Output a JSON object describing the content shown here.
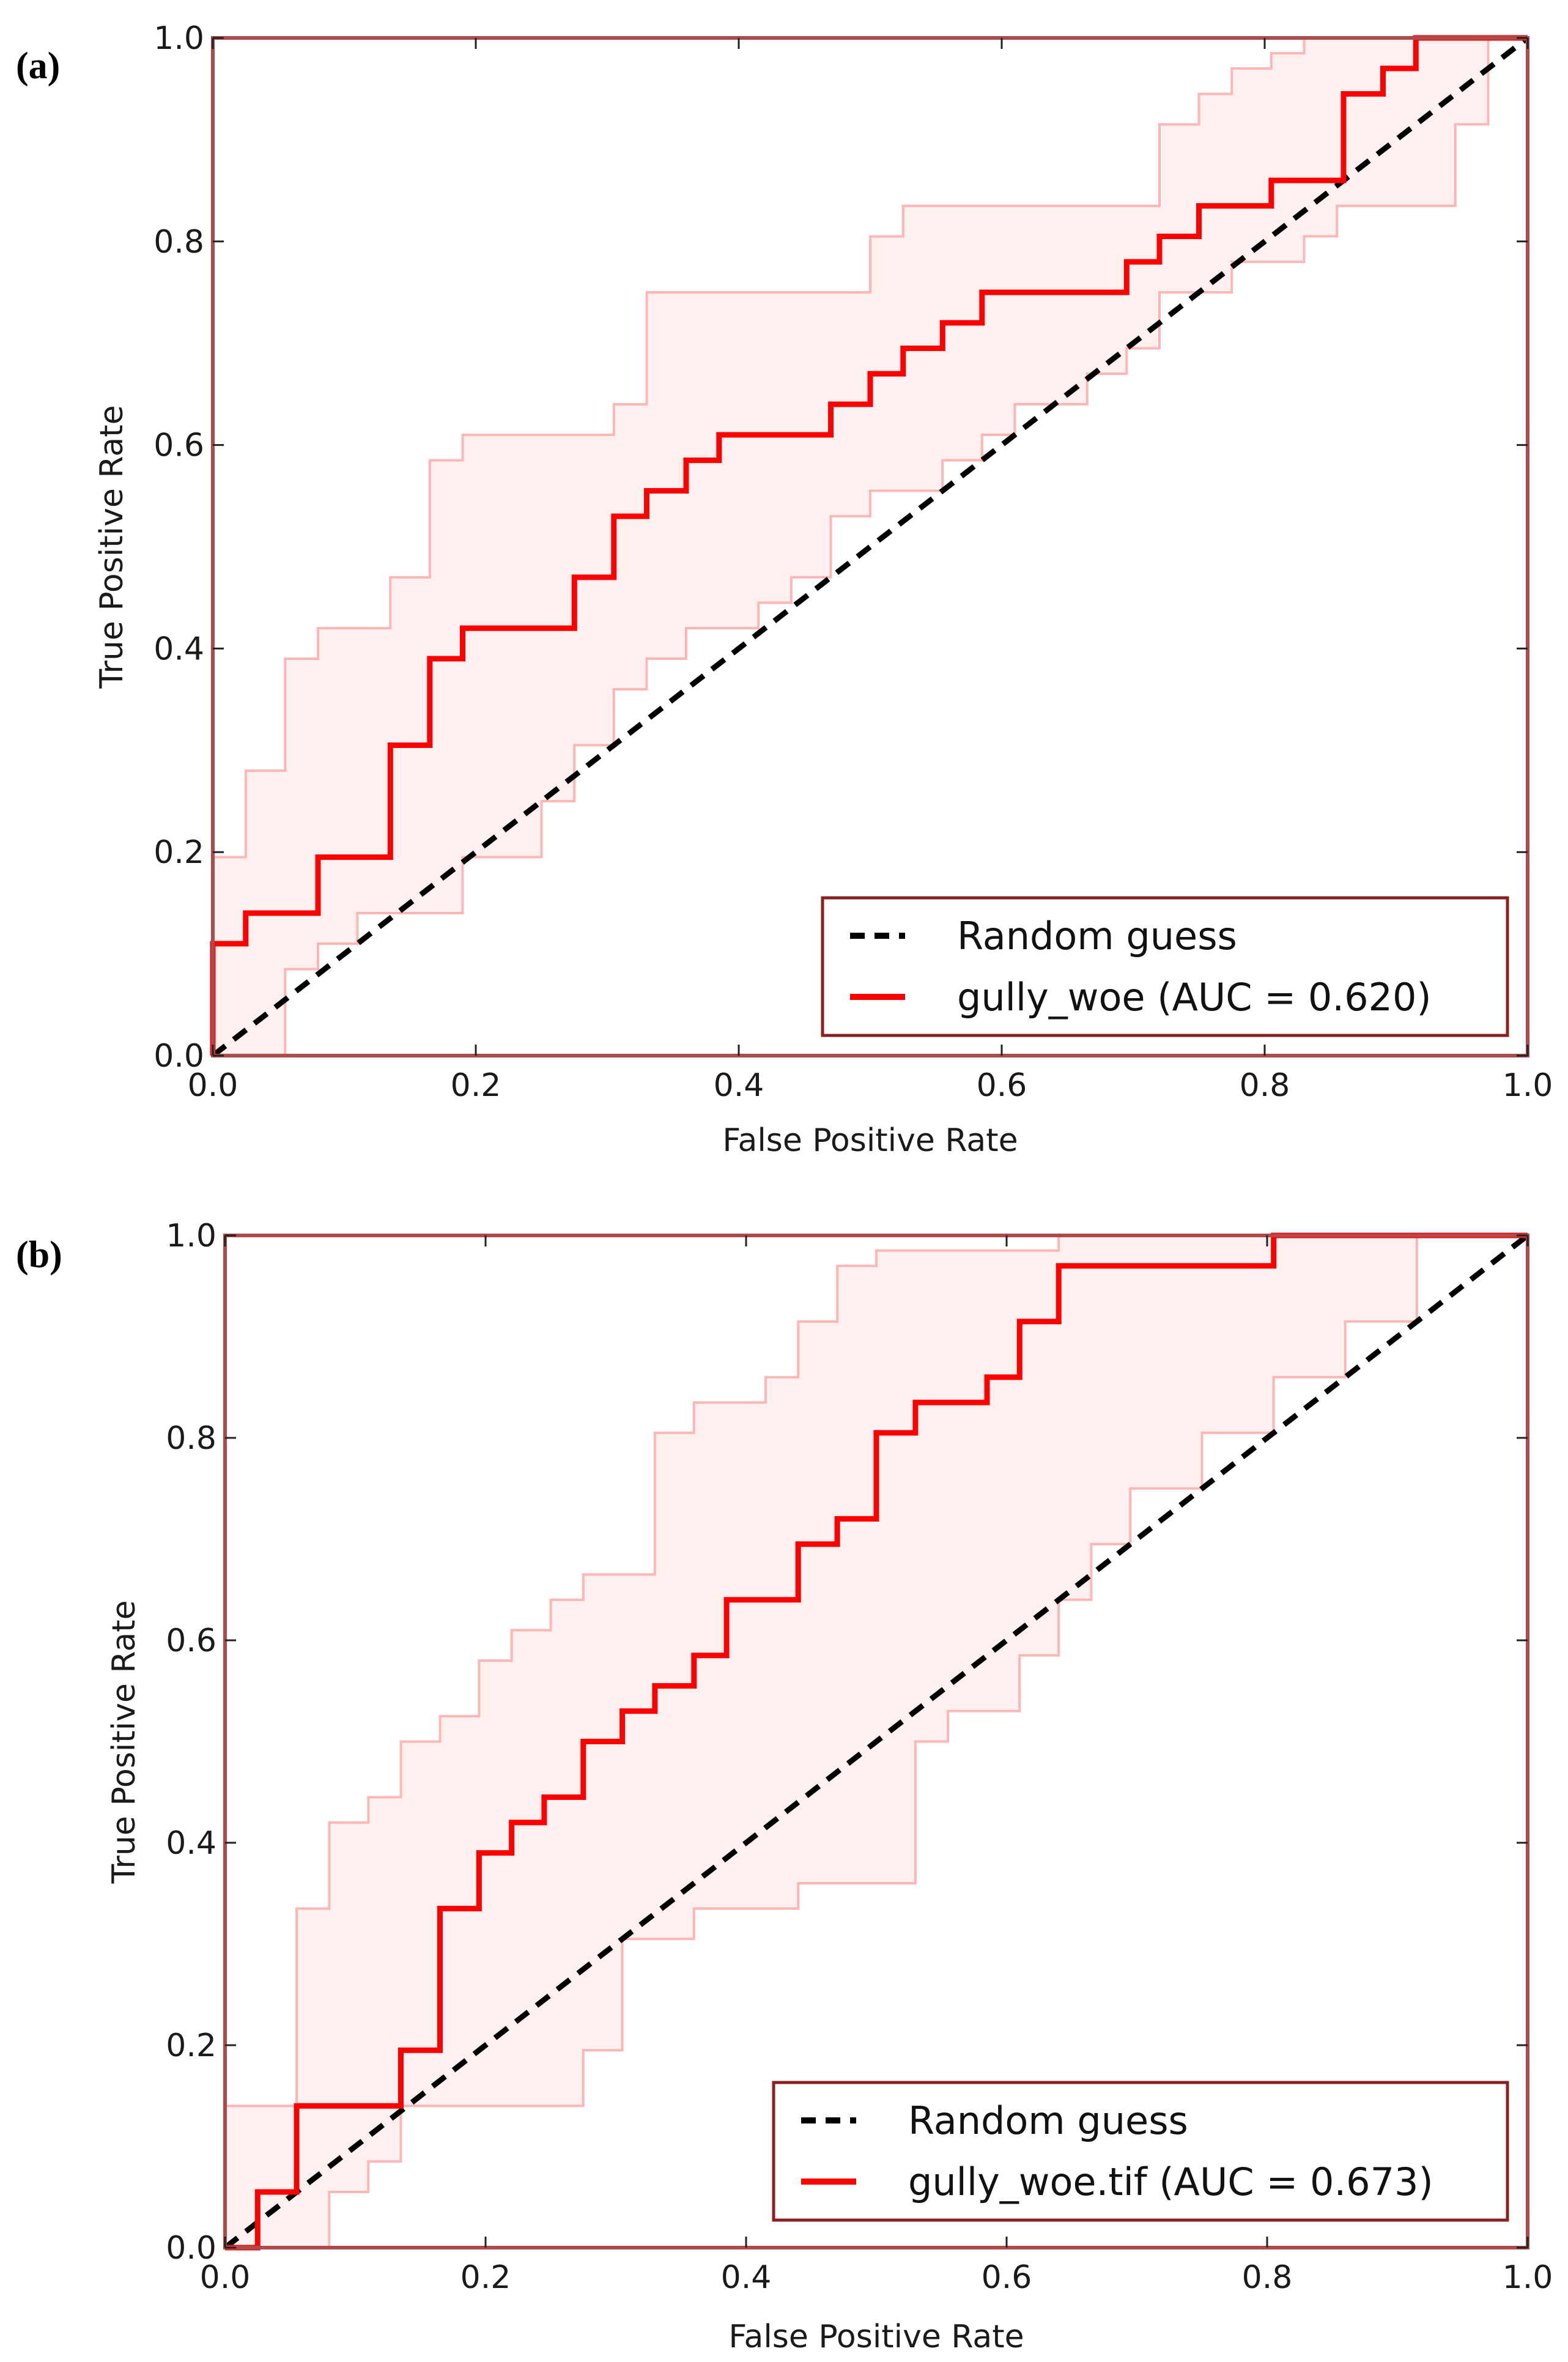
{
  "chart_data": [
    {
      "type": "line",
      "panel_label": "(a)",
      "xlabel": "False Positive Rate",
      "ylabel": "True Positive Rate",
      "xlim": [
        0.0,
        1.0
      ],
      "ylim": [
        0.0,
        1.0
      ],
      "xticks": [
        "0.0",
        "0.2",
        "0.4",
        "0.6",
        "0.8",
        "1.0"
      ],
      "yticks": [
        "0.0",
        "0.2",
        "0.4",
        "0.6",
        "0.8",
        "1.0"
      ],
      "legend_position": "lower-right",
      "series": [
        {
          "name": "Random guess",
          "style": "dashed",
          "color": "#000000",
          "x": [
            0.0,
            1.0
          ],
          "y": [
            0.0,
            1.0
          ]
        },
        {
          "name": "gully_woe (AUC = 0.620)",
          "style": "solid",
          "color": "#ff0000",
          "x": [
            0.0,
            0.0,
            0.025,
            0.025,
            0.08,
            0.08,
            0.135,
            0.135,
            0.165,
            0.165,
            0.19,
            0.19,
            0.275,
            0.275,
            0.305,
            0.305,
            0.33,
            0.33,
            0.36,
            0.36,
            0.385,
            0.385,
            0.47,
            0.47,
            0.5,
            0.5,
            0.525,
            0.525,
            0.555,
            0.555,
            0.585,
            0.585,
            0.695,
            0.695,
            0.72,
            0.72,
            0.75,
            0.75,
            0.805,
            0.805,
            0.86,
            0.86,
            0.89,
            0.89,
            0.915,
            0.915,
            1.0
          ],
          "y": [
            0.0,
            0.11,
            0.11,
            0.14,
            0.14,
            0.195,
            0.195,
            0.305,
            0.305,
            0.39,
            0.39,
            0.42,
            0.42,
            0.47,
            0.47,
            0.53,
            0.53,
            0.555,
            0.555,
            0.585,
            0.585,
            0.61,
            0.61,
            0.64,
            0.64,
            0.67,
            0.67,
            0.695,
            0.695,
            0.72,
            0.72,
            0.75,
            0.75,
            0.78,
            0.78,
            0.805,
            0.805,
            0.835,
            0.835,
            0.86,
            0.86,
            0.945,
            0.945,
            0.97,
            0.97,
            1.0,
            1.0
          ]
        }
      ],
      "confidence_band": {
        "color": "#ff9a9a",
        "fill": "#fff0f0",
        "upper": {
          "x": [
            0.0,
            0.0,
            0.025,
            0.025,
            0.055,
            0.055,
            0.08,
            0.08,
            0.135,
            0.135,
            0.165,
            0.165,
            0.19,
            0.19,
            0.305,
            0.305,
            0.33,
            0.33,
            0.5,
            0.5,
            0.525,
            0.525,
            0.72,
            0.72,
            0.75,
            0.75,
            0.775,
            0.775,
            0.805,
            0.805,
            0.83,
            0.83,
            1.0
          ],
          "y": [
            0.0,
            0.195,
            0.195,
            0.28,
            0.28,
            0.39,
            0.39,
            0.42,
            0.42,
            0.47,
            0.47,
            0.585,
            0.585,
            0.61,
            0.61,
            0.64,
            0.64,
            0.75,
            0.75,
            0.805,
            0.805,
            0.835,
            0.835,
            0.915,
            0.915,
            0.945,
            0.945,
            0.97,
            0.97,
            0.985,
            0.985,
            1.0,
            1.0
          ]
        },
        "lower": {
          "x": [
            0.0,
            0.055,
            0.055,
            0.08,
            0.08,
            0.11,
            0.11,
            0.19,
            0.19,
            0.25,
            0.25,
            0.275,
            0.275,
            0.305,
            0.305,
            0.33,
            0.33,
            0.36,
            0.36,
            0.415,
            0.415,
            0.44,
            0.44,
            0.47,
            0.47,
            0.5,
            0.5,
            0.555,
            0.555,
            0.585,
            0.585,
            0.61,
            0.61,
            0.665,
            0.665,
            0.695,
            0.695,
            0.72,
            0.72,
            0.775,
            0.775,
            0.83,
            0.83,
            0.855,
            0.855,
            0.945,
            0.945,
            0.97,
            0.97,
            1.0
          ],
          "y": [
            0.0,
            0.0,
            0.085,
            0.085,
            0.11,
            0.11,
            0.14,
            0.14,
            0.195,
            0.195,
            0.25,
            0.25,
            0.305,
            0.305,
            0.36,
            0.36,
            0.39,
            0.39,
            0.42,
            0.42,
            0.445,
            0.445,
            0.47,
            0.47,
            0.53,
            0.53,
            0.555,
            0.555,
            0.585,
            0.585,
            0.61,
            0.61,
            0.64,
            0.64,
            0.67,
            0.67,
            0.695,
            0.695,
            0.75,
            0.75,
            0.78,
            0.78,
            0.805,
            0.805,
            0.835,
            0.835,
            0.915,
            0.915,
            1.0,
            1.0
          ]
        }
      }
    },
    {
      "type": "line",
      "panel_label": "(b)",
      "xlabel": "False Positive Rate",
      "ylabel": "True Positive Rate",
      "xlim": [
        0.0,
        1.0
      ],
      "ylim": [
        0.0,
        1.0
      ],
      "xticks": [
        "0.0",
        "0.2",
        "0.4",
        "0.6",
        "0.8",
        "1.0"
      ],
      "yticks": [
        "0.0",
        "0.2",
        "0.4",
        "0.6",
        "0.8",
        "1.0"
      ],
      "legend_position": "lower-right",
      "series": [
        {
          "name": "Random guess",
          "style": "dashed",
          "color": "#000000",
          "x": [
            0.0,
            1.0
          ],
          "y": [
            0.0,
            1.0
          ]
        },
        {
          "name": "gully_woe.tif (AUC = 0.673)",
          "style": "solid",
          "color": "#ff0000",
          "x": [
            0.0,
            0.025,
            0.025,
            0.055,
            0.055,
            0.135,
            0.135,
            0.165,
            0.165,
            0.195,
            0.195,
            0.22,
            0.22,
            0.245,
            0.245,
            0.275,
            0.275,
            0.305,
            0.305,
            0.33,
            0.33,
            0.36,
            0.36,
            0.385,
            0.385,
            0.44,
            0.44,
            0.47,
            0.47,
            0.5,
            0.5,
            0.53,
            0.53,
            0.585,
            0.585,
            0.61,
            0.61,
            0.64,
            0.64,
            0.805,
            0.805,
            1.0
          ],
          "y": [
            0.0,
            0.0,
            0.055,
            0.055,
            0.14,
            0.14,
            0.195,
            0.195,
            0.335,
            0.335,
            0.39,
            0.39,
            0.42,
            0.42,
            0.445,
            0.445,
            0.5,
            0.5,
            0.53,
            0.53,
            0.555,
            0.555,
            0.585,
            0.585,
            0.64,
            0.64,
            0.695,
            0.695,
            0.72,
            0.72,
            0.805,
            0.805,
            0.835,
            0.835,
            0.86,
            0.86,
            0.915,
            0.915,
            0.97,
            0.97,
            1.0,
            1.0
          ]
        }
      ],
      "confidence_band": {
        "color": "#ff9a9a",
        "fill": "#fff0f0",
        "upper": {
          "x": [
            0.0,
            0.0,
            0.055,
            0.055,
            0.08,
            0.08,
            0.11,
            0.11,
            0.135,
            0.135,
            0.165,
            0.165,
            0.195,
            0.195,
            0.22,
            0.22,
            0.25,
            0.25,
            0.275,
            0.275,
            0.33,
            0.33,
            0.36,
            0.36,
            0.415,
            0.415,
            0.44,
            0.44,
            0.47,
            0.47,
            0.5,
            0.5,
            0.64,
            0.64,
            0.805,
            0.805,
            0.915,
            0.915,
            1.0
          ],
          "y": [
            0.0,
            0.14,
            0.14,
            0.335,
            0.335,
            0.42,
            0.42,
            0.445,
            0.445,
            0.5,
            0.5,
            0.525,
            0.525,
            0.58,
            0.58,
            0.61,
            0.61,
            0.64,
            0.64,
            0.665,
            0.665,
            0.805,
            0.805,
            0.835,
            0.835,
            0.86,
            0.86,
            0.915,
            0.915,
            0.97,
            0.97,
            0.985,
            0.985,
            1.0,
            1.0,
            1.0,
            1.0,
            1.0,
            1.0
          ]
        },
        "lower": {
          "x": [
            0.0,
            0.08,
            0.08,
            0.11,
            0.11,
            0.135,
            0.135,
            0.275,
            0.275,
            0.305,
            0.305,
            0.36,
            0.36,
            0.44,
            0.44,
            0.53,
            0.53,
            0.555,
            0.555,
            0.61,
            0.61,
            0.64,
            0.64,
            0.665,
            0.665,
            0.695,
            0.695,
            0.75,
            0.75,
            0.805,
            0.805,
            0.86,
            0.86,
            0.915,
            0.915,
            1.0
          ],
          "y": [
            0.0,
            0.0,
            0.055,
            0.055,
            0.085,
            0.085,
            0.14,
            0.14,
            0.195,
            0.195,
            0.305,
            0.305,
            0.335,
            0.335,
            0.36,
            0.36,
            0.5,
            0.5,
            0.53,
            0.53,
            0.585,
            0.585,
            0.64,
            0.64,
            0.695,
            0.695,
            0.75,
            0.75,
            0.805,
            0.805,
            0.86,
            0.86,
            0.915,
            0.915,
            1.0,
            1.0
          ]
        }
      }
    }
  ]
}
